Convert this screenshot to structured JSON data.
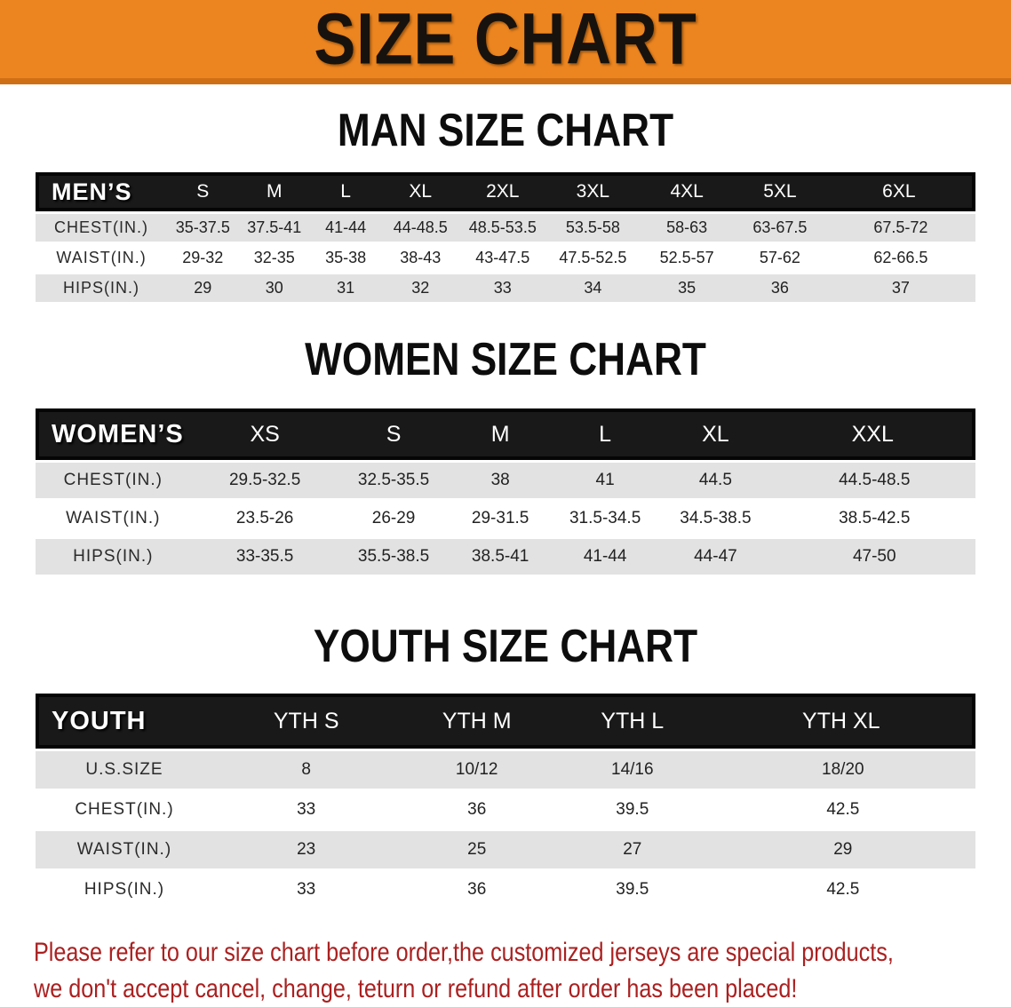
{
  "banner": {
    "title": "SIZE CHART",
    "bg_color": "#ec8520"
  },
  "sections": [
    {
      "id": "men",
      "title": "MAN SIZE CHART",
      "header_label": "MEN’S",
      "columns": [
        "S",
        "M",
        "L",
        "XL",
        "2XL",
        "3XL",
        "4XL",
        "5XL",
        "6XL"
      ],
      "rows": [
        {
          "label": "CHEST(IN.)",
          "values": [
            "35-37.5",
            "37.5-41",
            "41-44",
            "44-48.5",
            "48.5-53.5",
            "53.5-58",
            "58-63",
            "63-67.5",
            "67.5-72"
          ]
        },
        {
          "label": "WAIST(IN.)",
          "values": [
            "29-32",
            "32-35",
            "35-38",
            "38-43",
            "43-47.5",
            "47.5-52.5",
            "52.5-57",
            "57-62",
            "62-66.5"
          ]
        },
        {
          "label": "HIPS(IN.)",
          "values": [
            "29",
            "30",
            "31",
            "32",
            "33",
            "34",
            "35",
            "36",
            "37"
          ]
        }
      ]
    },
    {
      "id": "women",
      "title": "WOMEN SIZE CHART",
      "header_label": "WOMEN’S",
      "columns": [
        "XS",
        "S",
        "M",
        "L",
        "XL",
        "XXL"
      ],
      "rows": [
        {
          "label": "CHEST(IN.)",
          "values": [
            "29.5-32.5",
            "32.5-35.5",
            "38",
            "41",
            "44.5",
            "44.5-48.5"
          ]
        },
        {
          "label": "WAIST(IN.)",
          "values": [
            "23.5-26",
            "26-29",
            "29-31.5",
            "31.5-34.5",
            "34.5-38.5",
            "38.5-42.5"
          ]
        },
        {
          "label": "HIPS(IN.)",
          "values": [
            "33-35.5",
            "35.5-38.5",
            "38.5-41",
            "41-44",
            "44-47",
            "47-50"
          ]
        }
      ]
    },
    {
      "id": "youth",
      "title": "YOUTH SIZE CHART",
      "header_label": "YOUTH",
      "columns": [
        "YTH S",
        "YTH M",
        "YTH L",
        "YTH XL"
      ],
      "rows": [
        {
          "label": "U.S.SIZE",
          "values": [
            "8",
            "10/12",
            "14/16",
            "18/20"
          ]
        },
        {
          "label": "CHEST(IN.)",
          "values": [
            "33",
            "36",
            "39.5",
            "42.5"
          ]
        },
        {
          "label": "WAIST(IN.)",
          "values": [
            "23",
            "25",
            "27",
            "29"
          ]
        },
        {
          "label": "HIPS(IN.)",
          "values": [
            "33",
            "36",
            "39.5",
            "42.5"
          ]
        }
      ]
    }
  ],
  "footer": {
    "line1": "Please refer to our size chart before order,the customized jerseys are special products,",
    "line2": "we don't accept cancel, change, teturn or refund after order has been placed!",
    "text_color": "#ab2020"
  },
  "colors": {
    "banner_orange": "#ec8520",
    "banner_edge": "#cf6f15",
    "table_header_black": "#191919",
    "row_stripe_gray": "#e2e2e2",
    "notice_red": "#ab2020"
  }
}
